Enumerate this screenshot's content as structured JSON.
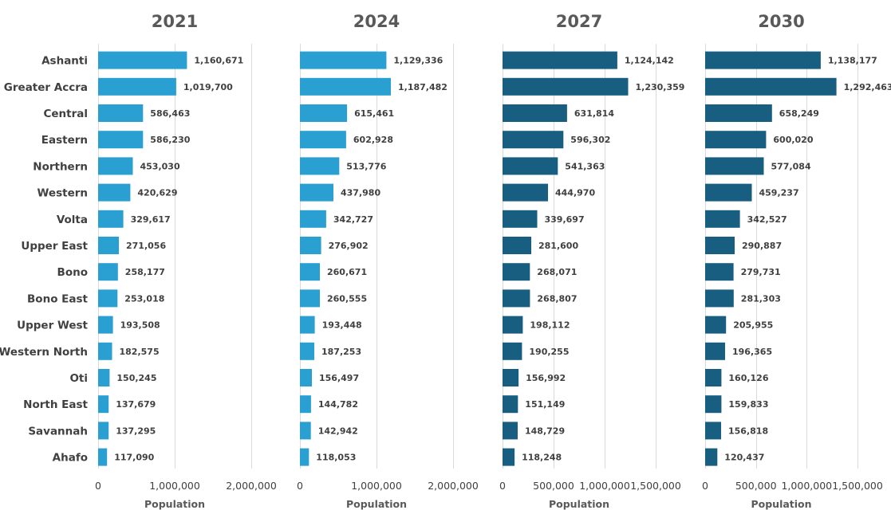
{
  "chart_data": [
    {
      "type": "bar",
      "orientation": "horizontal",
      "title": "2021",
      "xlabel": "Population",
      "categories": [
        "Ashanti",
        "Greater Accra",
        "Central",
        "Eastern",
        "Northern",
        "Western",
        "Volta",
        "Upper East",
        "Bono",
        "Bono East",
        "Upper West",
        "Western North",
        "Oti",
        "North East",
        "Savannah",
        "Ahafo"
      ],
      "values": [
        1160671,
        1019700,
        586463,
        586230,
        453030,
        420629,
        329617,
        271056,
        258177,
        253018,
        193508,
        182575,
        150245,
        137679,
        137295,
        117090
      ],
      "value_labels": [
        "1,160,671",
        "1,019,700",
        "586,463",
        "586,230",
        "453,030",
        "420,629",
        "329,617",
        "271,056",
        "258,177",
        "253,018",
        "193,508",
        "182,575",
        "150,245",
        "137,679",
        "137,295",
        "117,090"
      ],
      "xlim": [
        0,
        2400000
      ],
      "ticks": [
        0,
        1000000,
        2000000
      ],
      "tick_labels": [
        "0",
        "1,000,000",
        "2,000,000"
      ],
      "color": "#2a9fd1",
      "grid": true
    },
    {
      "type": "bar",
      "orientation": "horizontal",
      "title": "2024",
      "xlabel": "Population",
      "categories": [
        "Ashanti",
        "Greater Accra",
        "Central",
        "Eastern",
        "Northern",
        "Western",
        "Volta",
        "Upper East",
        "Bono",
        "Bono East",
        "Upper West",
        "Western North",
        "Oti",
        "North East",
        "Savannah",
        "Ahafo"
      ],
      "values": [
        1129336,
        1187482,
        615461,
        602928,
        513776,
        437980,
        342727,
        276902,
        260671,
        260555,
        193448,
        187253,
        156497,
        144782,
        142942,
        118053
      ],
      "value_labels": [
        "1,129,336",
        "1,187,482",
        "615,461",
        "602,928",
        "513,776",
        "437,980",
        "342,727",
        "276,902",
        "260,671",
        "260,555",
        "193,448",
        "187,253",
        "156,497",
        "144,782",
        "142,942",
        "118,053"
      ],
      "xlim": [
        0,
        2400000
      ],
      "ticks": [
        0,
        1000000,
        2000000
      ],
      "tick_labels": [
        "0",
        "1,000,000",
        "2,000,000"
      ],
      "color": "#2a9fd1",
      "grid": true
    },
    {
      "type": "bar",
      "orientation": "horizontal",
      "title": "2027",
      "xlabel": "Population",
      "categories": [
        "Ashanti",
        "Greater Accra",
        "Central",
        "Eastern",
        "Northern",
        "Western",
        "Volta",
        "Upper East",
        "Bono",
        "Bono East",
        "Upper West",
        "Western North",
        "Oti",
        "North East",
        "Savannah",
        "Ahafo"
      ],
      "values": [
        1124142,
        1230359,
        631814,
        596302,
        541363,
        444970,
        339697,
        281600,
        268071,
        268807,
        198112,
        190255,
        156992,
        151149,
        148729,
        118248
      ],
      "value_labels": [
        "1,124,142",
        "1,230,359",
        "631,814",
        "596,302",
        "541,363",
        "444,970",
        "339,697",
        "281,600",
        "268,071",
        "268,807",
        "198,112",
        "190,255",
        "156,992",
        "151,149",
        "148,729",
        "118,248"
      ],
      "xlim": [
        0,
        1900000
      ],
      "ticks": [
        0,
        500000,
        1000000,
        1500000
      ],
      "tick_labels": [
        "0",
        "500,000",
        "1,000,000",
        "1,500,000"
      ],
      "color": "#175e80",
      "grid": true
    },
    {
      "type": "bar",
      "orientation": "horizontal",
      "title": "2030",
      "xlabel": "Population",
      "categories": [
        "Ashanti",
        "Greater Accra",
        "Central",
        "Eastern",
        "Northern",
        "Western",
        "Volta",
        "Upper East",
        "Bono",
        "Bono East",
        "Upper West",
        "Western North",
        "Oti",
        "North East",
        "Savannah",
        "Ahafo"
      ],
      "values": [
        1138177,
        1292463,
        658249,
        600020,
        577084,
        459237,
        342527,
        290887,
        279731,
        281303,
        205955,
        196365,
        160126,
        159833,
        156818,
        120437
      ],
      "value_labels": [
        "1,138,177",
        "1,292,463",
        "658,249",
        "600,020",
        "577,084",
        "459,237",
        "342,527",
        "290,887",
        "279,731",
        "281,303",
        "205,955",
        "196,365",
        "160,126",
        "159,833",
        "156,818",
        "120,437"
      ],
      "xlim": [
        0,
        1900000
      ],
      "ticks": [
        0,
        500000,
        1000000,
        1500000
      ],
      "tick_labels": [
        "0",
        "500,000",
        "1,000,000",
        "1,500,000"
      ],
      "color": "#175e80",
      "grid": true
    }
  ]
}
